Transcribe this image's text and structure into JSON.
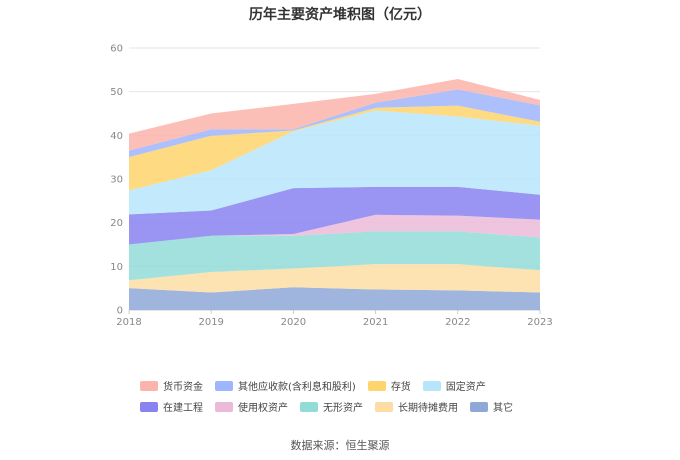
{
  "chart_data": {
    "type": "area",
    "stacked": true,
    "title": "历年主要资产堆积图（亿元）",
    "source_label": "数据来源：恒生聚源",
    "x": [
      "2018",
      "2019",
      "2020",
      "2021",
      "2022",
      "2023"
    ],
    "ylim": [
      0,
      60
    ],
    "yticks": [
      0,
      10,
      20,
      30,
      40,
      50,
      60
    ],
    "grid": true,
    "legend_position": "bottom",
    "series": [
      {
        "name": "其它",
        "color": "#8fa8d8",
        "values": [
          5.0,
          4.0,
          5.2,
          4.7,
          4.5,
          4.0
        ]
      },
      {
        "name": "长期待摊费用",
        "color": "#fddda4",
        "values": [
          1.8,
          4.7,
          4.3,
          5.8,
          6.0,
          5.1
        ]
      },
      {
        "name": "无形资产",
        "color": "#92dcd8",
        "values": [
          8.2,
          8.3,
          7.5,
          7.5,
          7.5,
          7.5
        ]
      },
      {
        "name": "使用权资产",
        "color": "#ebbad9",
        "values": [
          0.0,
          0.0,
          0.4,
          3.8,
          3.6,
          4.1
        ]
      },
      {
        "name": "在建工程",
        "color": "#8883f0",
        "values": [
          6.9,
          5.8,
          10.5,
          6.4,
          6.6,
          5.7
        ]
      },
      {
        "name": "固定资产",
        "color": "#b7e5fb",
        "values": [
          5.5,
          9.2,
          13.0,
          17.5,
          16.1,
          15.8
        ]
      },
      {
        "name": "存货",
        "color": "#fed56c",
        "values": [
          7.6,
          7.9,
          0.2,
          0.6,
          2.5,
          0.9
        ]
      },
      {
        "name": "其他应收款(含利息和股利)",
        "color": "#9fb5fc",
        "values": [
          1.5,
          1.5,
          0.3,
          1.2,
          3.7,
          3.8
        ]
      },
      {
        "name": "货币资金",
        "color": "#fbb4ac",
        "values": [
          3.9,
          3.6,
          5.8,
          2.0,
          2.4,
          1.2
        ]
      }
    ],
    "legend_order": [
      "货币资金",
      "其他应收款(含利息和股利)",
      "存货",
      "固定资产",
      "在建工程",
      "使用权资产",
      "无形资产",
      "长期待摊费用",
      "其它"
    ]
  }
}
